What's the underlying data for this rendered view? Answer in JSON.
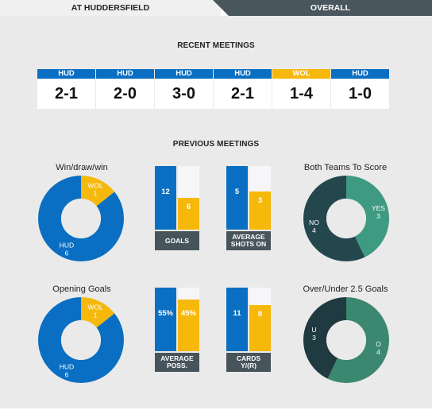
{
  "tabs": {
    "active": "AT HUDDERSFIELD",
    "inactive": "OVERALL"
  },
  "colors": {
    "hud": "#0a6fc2",
    "wol": "#f6b90b",
    "btts_yes": "#3e9a80",
    "btts_no": "#24474e",
    "over": "#3c8770",
    "under": "#1f3a40",
    "caption": "#47545b"
  },
  "recent": {
    "title": "RECENT MEETINGS",
    "matches": [
      {
        "team": "HUD",
        "score": "2-1"
      },
      {
        "team": "HUD",
        "score": "2-0"
      },
      {
        "team": "HUD",
        "score": "3-0"
      },
      {
        "team": "HUD",
        "score": "2-1"
      },
      {
        "team": "WOL",
        "score": "1-4"
      },
      {
        "team": "HUD",
        "score": "1-0"
      }
    ]
  },
  "previous": {
    "title": "PREVIOUS MEETINGS",
    "wdw": {
      "label": "Win/draw/win",
      "hud_name": "HUD",
      "hud_value": 6,
      "wol_name": "WOL",
      "wol_value": 1
    },
    "opening": {
      "label": "Opening Goals",
      "hud_name": "HUD",
      "hud_value": 6,
      "wol_name": "WOL",
      "wol_value": 1
    },
    "goals": {
      "caption": "GOALS",
      "hud": 12,
      "wol": 6,
      "hud_label": "12",
      "wol_label": "6"
    },
    "shots": {
      "caption": "AVERAGE SHOTS ON",
      "hud": 5,
      "wol": 3,
      "hud_label": "5",
      "wol_label": "3"
    },
    "possession": {
      "caption": "AVERAGE POSS.",
      "hud": 55,
      "wol": 45,
      "hud_label": "55%",
      "wol_label": "45%"
    },
    "cards": {
      "caption": "CARDS Y/(R)",
      "hud": 11,
      "wol": 8,
      "hud_label": "11",
      "wol_label": "8"
    },
    "btts": {
      "label": "Both Teams To Score",
      "yes_name": "YES",
      "yes_value": 3,
      "no_name": "NO",
      "no_value": 4
    },
    "ou": {
      "label": "Over/Under 2.5 Goals",
      "over_name": "O",
      "over_value": 4,
      "under_name": "U",
      "under_value": 3
    }
  }
}
